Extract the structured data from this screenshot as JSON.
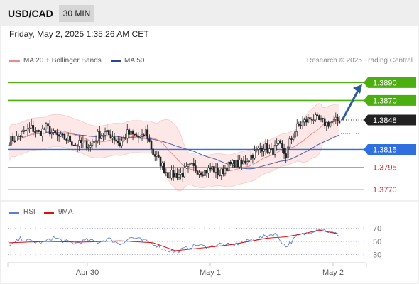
{
  "header": {
    "symbol": "USD/CAD",
    "timeframe": "30 MIN"
  },
  "timestamp": "Friday, May 2, 2025 1:35:26 AM CET",
  "legend": {
    "ma20": "MA 20 + Bollinger Bands",
    "ma50": "MA 50",
    "credit": "Research © 2025 Trading Central"
  },
  "colors": {
    "resistance": "#4caf10",
    "support": "#2f6fe0",
    "target": "#2b5aa0",
    "candle": "#222222",
    "bollinger": "#fde3e3",
    "ma20": "#f08a8a",
    "ma50": "#4a5fa6",
    "rsi": "#5b7fd6",
    "rsi_ma": "#dd1111",
    "level_red": "#e88a8a"
  },
  "chart_data": [
    {
      "type": "candlestick",
      "instrument": "USD/CAD",
      "timeframe": "30 MIN",
      "x_tick_labels": [
        "Apr 30",
        "May 1",
        "May 2"
      ],
      "ylim": [
        1.3758,
        1.3903
      ],
      "last_price": 1.3848,
      "levels": [
        {
          "label": "1.3890",
          "value": 1.389,
          "kind": "resistance"
        },
        {
          "label": "1.3870",
          "value": 1.387,
          "kind": "resistance"
        },
        {
          "label": "1.3848",
          "value": 1.3848,
          "kind": "last"
        },
        {
          "label": "1.3815",
          "value": 1.3815,
          "kind": "support"
        },
        {
          "label": "1.3795",
          "value": 1.3795,
          "kind": "support-2"
        },
        {
          "label": "1.3770",
          "value": 1.377,
          "kind": "support-3"
        }
      ],
      "target_arrow": {
        "from": 1.3848,
        "to": 1.3888
      },
      "price_anchors": [
        [
          0,
          1.3825
        ],
        [
          4,
          1.3828
        ],
        [
          8,
          1.3834
        ],
        [
          12,
          1.3839
        ],
        [
          16,
          1.3833
        ],
        [
          20,
          1.384
        ],
        [
          24,
          1.3832
        ],
        [
          28,
          1.3828
        ],
        [
          32,
          1.3827
        ],
        [
          36,
          1.382
        ],
        [
          40,
          1.3822
        ],
        [
          44,
          1.3819
        ],
        [
          48,
          1.3831
        ],
        [
          52,
          1.3833
        ],
        [
          56,
          1.383
        ],
        [
          60,
          1.3821
        ],
        [
          64,
          1.3833
        ],
        [
          68,
          1.383
        ],
        [
          72,
          1.3827
        ],
        [
          74,
          1.3835
        ],
        [
          78,
          1.3811
        ],
        [
          82,
          1.38
        ],
        [
          86,
          1.3787
        ],
        [
          90,
          1.3787
        ],
        [
          94,
          1.3788
        ],
        [
          98,
          1.3796
        ],
        [
          102,
          1.3792
        ],
        [
          106,
          1.379
        ],
        [
          110,
          1.3794
        ],
        [
          114,
          1.3787
        ],
        [
          118,
          1.3796
        ],
        [
          122,
          1.3799
        ],
        [
          126,
          1.3798
        ],
        [
          130,
          1.3806
        ],
        [
          134,
          1.3813
        ],
        [
          138,
          1.3819
        ],
        [
          142,
          1.3812
        ],
        [
          146,
          1.382
        ],
        [
          150,
          1.3808
        ],
        [
          152,
          1.3823
        ],
        [
          156,
          1.384
        ],
        [
          160,
          1.3846
        ],
        [
          164,
          1.3851
        ],
        [
          168,
          1.3847
        ],
        [
          172,
          1.3844
        ],
        [
          176,
          1.3846
        ],
        [
          179,
          1.3848
        ]
      ],
      "rsi": {
        "label": "RSI",
        "ma_label": "9MA",
        "ylim": [
          22,
          78
        ],
        "y_ticks": [
          70,
          50,
          30
        ],
        "series_anchors": [
          [
            0,
            42
          ],
          [
            6,
            54
          ],
          [
            12,
            50
          ],
          [
            18,
            48
          ],
          [
            24,
            56
          ],
          [
            30,
            50
          ],
          [
            36,
            47
          ],
          [
            42,
            52
          ],
          [
            48,
            49
          ],
          [
            54,
            54
          ],
          [
            60,
            46
          ],
          [
            66,
            56
          ],
          [
            72,
            52
          ],
          [
            78,
            47
          ],
          [
            84,
            38
          ],
          [
            90,
            34
          ],
          [
            96,
            40
          ],
          [
            102,
            45
          ],
          [
            108,
            41
          ],
          [
            114,
            46
          ],
          [
            120,
            44
          ],
          [
            126,
            48
          ],
          [
            132,
            53
          ],
          [
            138,
            57
          ],
          [
            144,
            62
          ],
          [
            150,
            42
          ],
          [
            156,
            58
          ],
          [
            162,
            63
          ],
          [
            168,
            70
          ],
          [
            172,
            66
          ],
          [
            176,
            62
          ],
          [
            179,
            60
          ]
        ],
        "ma_anchors": [
          [
            0,
            48
          ],
          [
            20,
            50
          ],
          [
            40,
            49
          ],
          [
            60,
            51
          ],
          [
            78,
            48
          ],
          [
            90,
            36
          ],
          [
            104,
            40
          ],
          [
            120,
            45
          ],
          [
            140,
            55
          ],
          [
            150,
            57
          ],
          [
            160,
            62
          ],
          [
            168,
            67
          ],
          [
            179,
            61
          ]
        ]
      }
    }
  ]
}
